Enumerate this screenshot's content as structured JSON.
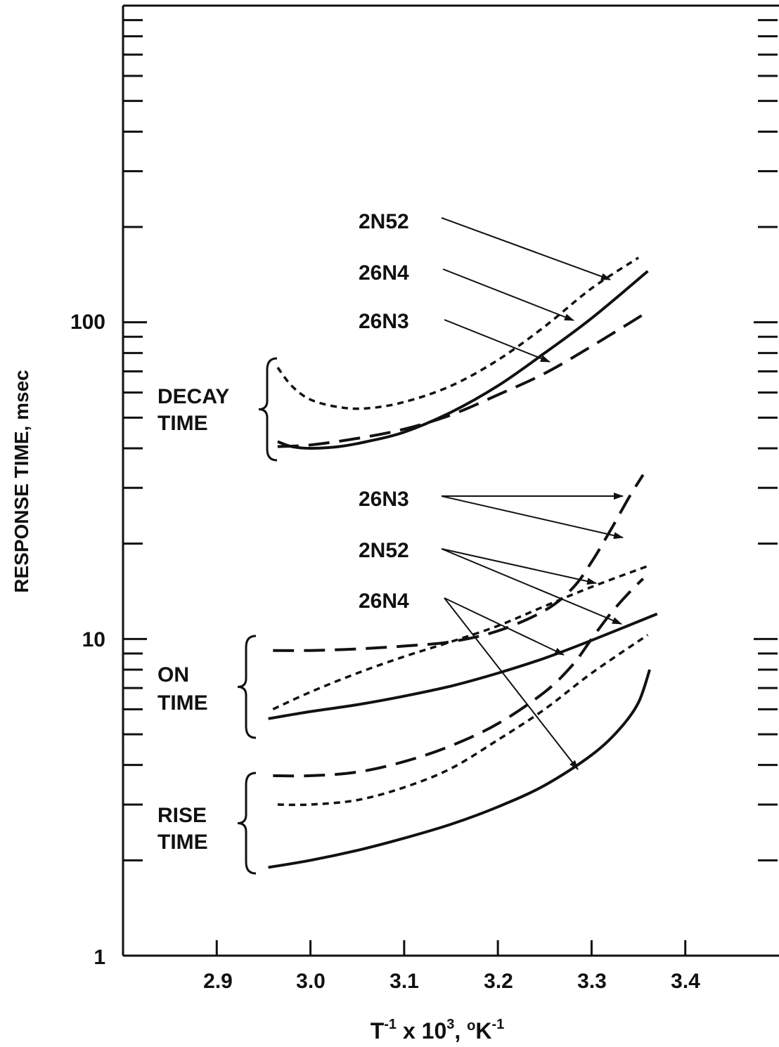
{
  "chart_data": {
    "type": "line",
    "xlabel_base": "T",
    "xlabel_sup1": "-1",
    "xlabel_mid": " x 10",
    "xlabel_sup2": "3",
    "xlabel_mid2": ", ",
    "xlabel_deg": "o",
    "xlabel_unit": "K",
    "xlabel_sup3": "-1",
    "ylabel": "RESPONSE TIME, msec",
    "xlim": [
      2.8,
      3.5
    ],
    "ylim": [
      1,
      1000
    ],
    "yscale": "log",
    "x_ticks": [
      "2.9",
      "3.0",
      "3.1",
      "3.2",
      "3.3",
      "3.4"
    ],
    "y_tick_labels": [
      "1",
      "10",
      "100"
    ],
    "groups": [
      {
        "label_line1": "DECAY",
        "label_line2": "TIME"
      },
      {
        "label_line1": "ON",
        "label_line2": "TIME"
      },
      {
        "label_line1": "RISE",
        "label_line2": "TIME"
      }
    ],
    "callouts": [
      {
        "text": "2N52"
      },
      {
        "text": "26N4"
      },
      {
        "text": "26N3"
      },
      {
        "text": "26N3"
      },
      {
        "text": "2N52"
      },
      {
        "text": "26N4"
      }
    ],
    "series": [
      {
        "group": "DECAY TIME",
        "name": "2N52",
        "style": "dotted",
        "x": [
          2.965,
          2.98,
          3.0,
          3.03,
          3.06,
          3.1,
          3.15,
          3.2,
          3.25,
          3.3,
          3.35
        ],
        "y": [
          72,
          63,
          57,
          54,
          53.5,
          56,
          63,
          76,
          97,
          128,
          160
        ]
      },
      {
        "group": "DECAY TIME",
        "name": "26N4",
        "style": "solid",
        "x": [
          2.965,
          2.98,
          3.0,
          3.03,
          3.06,
          3.1,
          3.15,
          3.2,
          3.25,
          3.3,
          3.36
        ],
        "y": [
          42,
          40.5,
          40,
          40.5,
          42,
          45,
          52,
          63,
          80,
          103,
          145
        ]
      },
      {
        "group": "DECAY TIME",
        "name": "26N3",
        "style": "dashed",
        "x": [
          2.965,
          3.0,
          3.05,
          3.1,
          3.15,
          3.2,
          3.25,
          3.3,
          3.36
        ],
        "y": [
          40.5,
          41,
          43,
          46,
          51,
          59,
          69,
          84,
          108
        ]
      },
      {
        "group": "ON TIME",
        "name": "26N3",
        "style": "dashed",
        "x": [
          2.96,
          3.0,
          3.05,
          3.1,
          3.15,
          3.2,
          3.25,
          3.28,
          3.3,
          3.32,
          3.34,
          3.355
        ],
        "y": [
          9.2,
          9.2,
          9.3,
          9.5,
          9.8,
          10.6,
          12.3,
          14.5,
          17.5,
          22,
          28,
          33
        ]
      },
      {
        "group": "ON TIME",
        "name": "2N52",
        "style": "dotted",
        "x": [
          2.96,
          3.0,
          3.05,
          3.1,
          3.15,
          3.2,
          3.25,
          3.3,
          3.36
        ],
        "y": [
          6.0,
          6.8,
          7.8,
          8.8,
          9.8,
          11.0,
          12.7,
          14.6,
          17.0
        ]
      },
      {
        "group": "ON TIME",
        "name": "26N4",
        "style": "solid",
        "x": [
          2.955,
          3.0,
          3.05,
          3.1,
          3.15,
          3.2,
          3.25,
          3.3,
          3.37
        ],
        "y": [
          5.6,
          5.9,
          6.2,
          6.6,
          7.1,
          7.8,
          8.7,
          9.9,
          12.0
        ]
      },
      {
        "group": "RISE TIME",
        "name": "26N3",
        "style": "dashed",
        "x": [
          2.96,
          3.0,
          3.05,
          3.1,
          3.15,
          3.2,
          3.25,
          3.28,
          3.3,
          3.32,
          3.34,
          3.355
        ],
        "y": [
          3.7,
          3.7,
          3.8,
          4.1,
          4.6,
          5.4,
          6.8,
          8.3,
          10.0,
          12.0,
          14.0,
          15.5
        ]
      },
      {
        "group": "RISE TIME",
        "name": "2N52",
        "style": "dotted",
        "x": [
          2.965,
          3.0,
          3.05,
          3.1,
          3.15,
          3.2,
          3.25,
          3.3,
          3.36
        ],
        "y": [
          3.0,
          3.0,
          3.1,
          3.4,
          3.9,
          4.8,
          6.0,
          7.8,
          10.3
        ]
      },
      {
        "group": "RISE TIME",
        "name": "26N4",
        "style": "solid",
        "x": [
          2.955,
          3.0,
          3.05,
          3.1,
          3.15,
          3.2,
          3.25,
          3.3,
          3.33,
          3.35,
          3.362
        ],
        "y": [
          1.9,
          2.0,
          2.15,
          2.35,
          2.6,
          2.95,
          3.45,
          4.3,
          5.2,
          6.3,
          8.0
        ]
      }
    ]
  }
}
